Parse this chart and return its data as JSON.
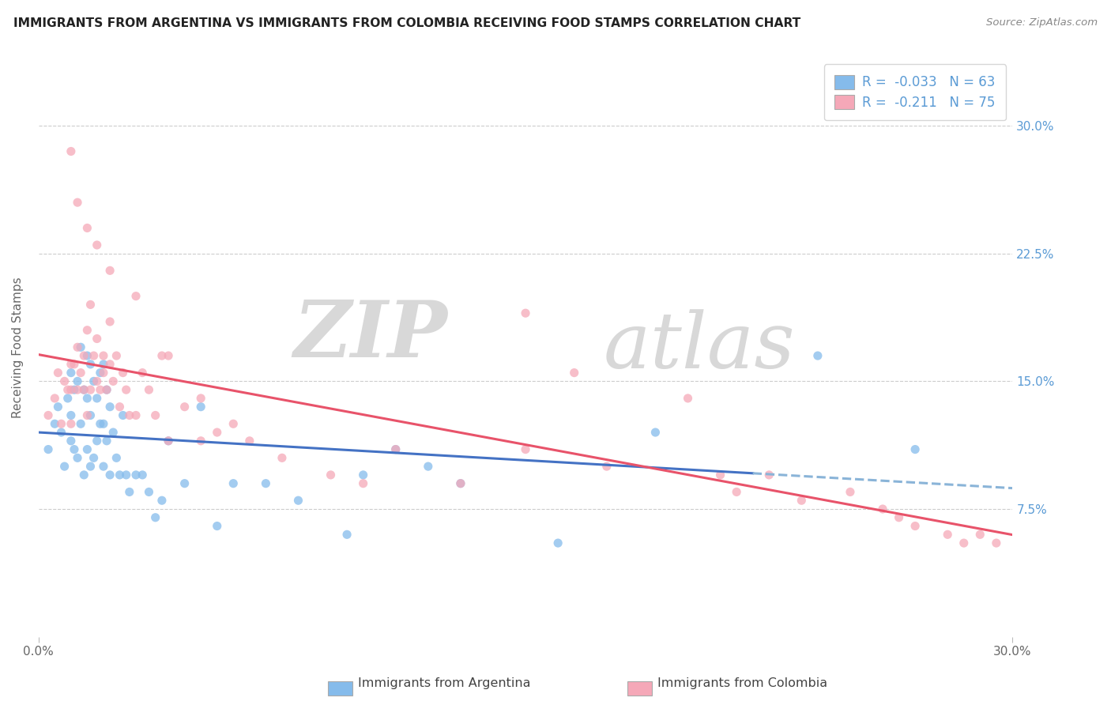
{
  "title": "IMMIGRANTS FROM ARGENTINA VS IMMIGRANTS FROM COLOMBIA RECEIVING FOOD STAMPS CORRELATION CHART",
  "source": "Source: ZipAtlas.com",
  "ylabel": "Receiving Food Stamps",
  "yticks": [
    "7.5%",
    "15.0%",
    "22.5%",
    "30.0%"
  ],
  "ytick_vals": [
    0.075,
    0.15,
    0.225,
    0.3
  ],
  "xlim": [
    0.0,
    0.3
  ],
  "ylim": [
    0.0,
    0.34
  ],
  "legend_blue_r": "-0.033",
  "legend_blue_n": "63",
  "legend_pink_r": "-0.211",
  "legend_pink_n": "75",
  "legend_label_blue": "Immigrants from Argentina",
  "legend_label_pink": "Immigrants from Colombia",
  "color_blue": "#85bbeb",
  "color_pink": "#f5a8b8",
  "color_blue_line": "#4472c4",
  "color_pink_line": "#e8536a",
  "color_blue_dash": "#8ab4d8",
  "watermark_zip": "ZIP",
  "watermark_atlas": "atlas",
  "argentina_x": [
    0.003,
    0.005,
    0.006,
    0.007,
    0.008,
    0.009,
    0.01,
    0.01,
    0.01,
    0.011,
    0.011,
    0.012,
    0.012,
    0.013,
    0.013,
    0.014,
    0.014,
    0.015,
    0.015,
    0.015,
    0.016,
    0.016,
    0.016,
    0.017,
    0.017,
    0.018,
    0.018,
    0.019,
    0.019,
    0.02,
    0.02,
    0.02,
    0.021,
    0.021,
    0.022,
    0.022,
    0.023,
    0.024,
    0.025,
    0.026,
    0.027,
    0.028,
    0.03,
    0.032,
    0.034,
    0.036,
    0.038,
    0.04,
    0.045,
    0.05,
    0.055,
    0.06,
    0.07,
    0.08,
    0.095,
    0.1,
    0.11,
    0.12,
    0.13,
    0.16,
    0.19,
    0.24,
    0.27
  ],
  "argentina_y": [
    0.11,
    0.125,
    0.135,
    0.12,
    0.1,
    0.14,
    0.115,
    0.13,
    0.155,
    0.11,
    0.145,
    0.105,
    0.15,
    0.125,
    0.17,
    0.095,
    0.145,
    0.11,
    0.14,
    0.165,
    0.1,
    0.13,
    0.16,
    0.105,
    0.15,
    0.115,
    0.14,
    0.125,
    0.155,
    0.1,
    0.125,
    0.16,
    0.115,
    0.145,
    0.095,
    0.135,
    0.12,
    0.105,
    0.095,
    0.13,
    0.095,
    0.085,
    0.095,
    0.095,
    0.085,
    0.07,
    0.08,
    0.115,
    0.09,
    0.135,
    0.065,
    0.09,
    0.09,
    0.08,
    0.06,
    0.095,
    0.11,
    0.1,
    0.09,
    0.055,
    0.12,
    0.165,
    0.11
  ],
  "colombia_x": [
    0.003,
    0.005,
    0.006,
    0.007,
    0.008,
    0.009,
    0.01,
    0.01,
    0.01,
    0.011,
    0.012,
    0.012,
    0.013,
    0.014,
    0.014,
    0.015,
    0.015,
    0.016,
    0.016,
    0.017,
    0.018,
    0.018,
    0.019,
    0.02,
    0.02,
    0.021,
    0.022,
    0.022,
    0.023,
    0.024,
    0.025,
    0.026,
    0.027,
    0.028,
    0.03,
    0.032,
    0.034,
    0.036,
    0.038,
    0.04,
    0.045,
    0.05,
    0.055,
    0.065,
    0.075,
    0.09,
    0.1,
    0.11,
    0.13,
    0.15,
    0.165,
    0.175,
    0.2,
    0.21,
    0.215,
    0.225,
    0.235,
    0.25,
    0.26,
    0.265,
    0.27,
    0.28,
    0.285,
    0.29,
    0.295,
    0.01,
    0.012,
    0.015,
    0.018,
    0.022,
    0.03,
    0.04,
    0.05,
    0.06,
    0.15
  ],
  "colombia_y": [
    0.13,
    0.14,
    0.155,
    0.125,
    0.15,
    0.145,
    0.16,
    0.145,
    0.125,
    0.16,
    0.145,
    0.17,
    0.155,
    0.145,
    0.165,
    0.13,
    0.18,
    0.145,
    0.195,
    0.165,
    0.15,
    0.175,
    0.145,
    0.165,
    0.155,
    0.145,
    0.16,
    0.185,
    0.15,
    0.165,
    0.135,
    0.155,
    0.145,
    0.13,
    0.13,
    0.155,
    0.145,
    0.13,
    0.165,
    0.115,
    0.135,
    0.115,
    0.12,
    0.115,
    0.105,
    0.095,
    0.09,
    0.11,
    0.09,
    0.11,
    0.155,
    0.1,
    0.14,
    0.095,
    0.085,
    0.095,
    0.08,
    0.085,
    0.075,
    0.07,
    0.065,
    0.06,
    0.055,
    0.06,
    0.055,
    0.285,
    0.255,
    0.24,
    0.23,
    0.215,
    0.2,
    0.165,
    0.14,
    0.125,
    0.19
  ]
}
